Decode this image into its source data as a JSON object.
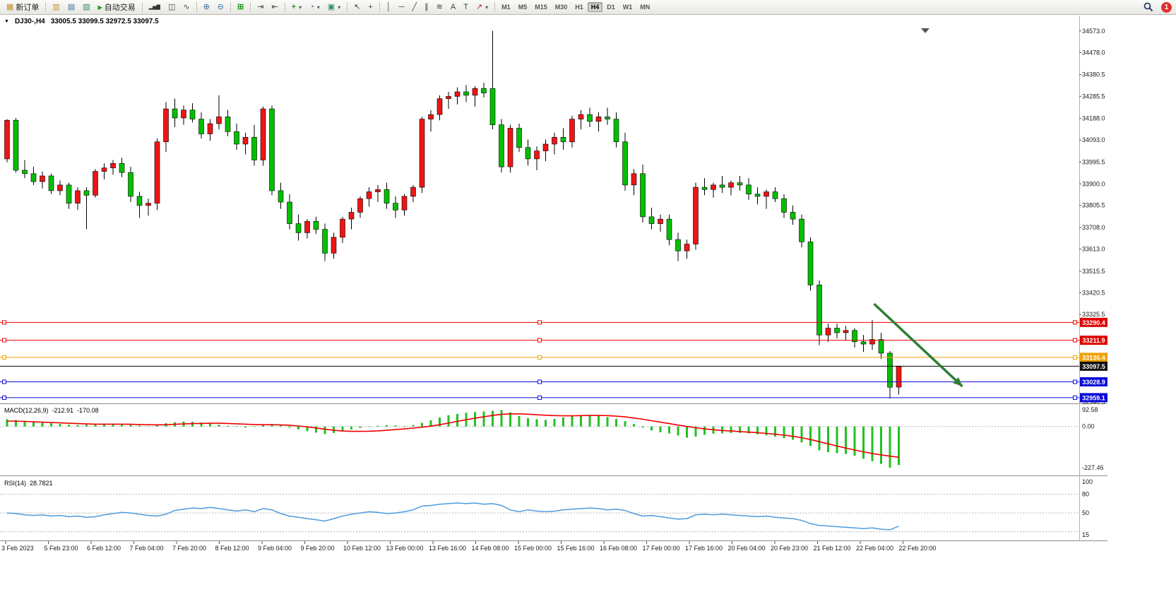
{
  "toolbar": {
    "new_order_label": "新订单",
    "autotrading_label": "自动交易",
    "timeframes": [
      "M1",
      "M5",
      "M15",
      "M30",
      "H1",
      "H4",
      "D1",
      "W1",
      "MN"
    ],
    "active_timeframe": "H4",
    "notification_count": "1"
  },
  "icons": {
    "chart_menu": "▼",
    "new_chart": "▦",
    "market_watch": "▥",
    "data_window": "▤",
    "navigator": "▧",
    "play": "▶",
    "bar_chart": "▂▅▇",
    "candlestick": "◫",
    "line_chart": "∿",
    "zoom_in": "⊕",
    "zoom_out": "⊖",
    "tile_windows": "⊞",
    "scroll_to_end": "⇥",
    "chart_shift": "⇤",
    "indicators": "+",
    "periods": "◔",
    "templates": "▣",
    "dropdown": "▾",
    "cursor": "↖",
    "crosshair": "+",
    "vertical_line": "│",
    "horizontal_line": "─",
    "trend_line": "╱",
    "channel": "∥",
    "fibonacci": "≋",
    "text_tool": "A",
    "label_tool": "T",
    "arrows_tool": "↗"
  },
  "chart_header": {
    "symbol_period": "DJ30-,H4",
    "ohlc": "33005.5 33099.5 32972.5 33097.5"
  },
  "chart_data": {
    "type": "candlestick",
    "symbol": "DJ30-",
    "timeframe": "H4",
    "colors": {
      "bull": "#f01414",
      "bear": "#00c000",
      "wick": "#000000",
      "border": "#000000"
    },
    "price_axis": [
      "34573.0",
      "34478.0",
      "34380.5",
      "34285.5",
      "34188.0",
      "34093.0",
      "33995.5",
      "33900.0",
      "33805.5",
      "33708.0",
      "33613.0",
      "33515.5",
      "33420.5",
      "33325.5",
      "32940.5"
    ],
    "price_lines": [
      {
        "label": "33290.4",
        "price": 33290.4,
        "color": "#f00000",
        "tag_bg": "#e00000",
        "handles": true
      },
      {
        "label": "33211.9",
        "price": 33211.9,
        "color": "#f00000",
        "tag_bg": "#e00000",
        "handles": true
      },
      {
        "label": "33136.4",
        "price": 33136.4,
        "color": "#f0a000",
        "tag_bg": "#f0a000",
        "handles": true
      },
      {
        "label": "33097.5",
        "price": 33097.5,
        "color": "#000000",
        "tag_bg": "#111111",
        "handles": false
      },
      {
        "label": "33028.9",
        "price": 33028.9,
        "color": "#0a0ad8",
        "tag_bg": "#0a0ad8",
        "handles": true
      },
      {
        "label": "32959.1",
        "price": 32959.1,
        "color": "#0a0ad8",
        "tag_bg": "#0a0ad8",
        "handles": true
      }
    ],
    "candles": [
      [
        34010,
        34185,
        33995,
        34180
      ],
      [
        34180,
        34190,
        33950,
        33960
      ],
      [
        33960,
        34005,
        33925,
        33945
      ],
      [
        33945,
        33975,
        33895,
        33910
      ],
      [
        33910,
        33955,
        33880,
        33935
      ],
      [
        33935,
        33945,
        33855,
        33870
      ],
      [
        33870,
        33915,
        33850,
        33895
      ],
      [
        33895,
        33905,
        33790,
        33815
      ],
      [
        33815,
        33885,
        33785,
        33870
      ],
      [
        33870,
        33885,
        33700,
        33850
      ],
      [
        33850,
        33965,
        33840,
        33955
      ],
      [
        33955,
        33990,
        33920,
        33970
      ],
      [
        33970,
        34005,
        33940,
        33990
      ],
      [
        33990,
        34015,
        33930,
        33950
      ],
      [
        33950,
        33975,
        33820,
        33845
      ],
      [
        33845,
        33865,
        33750,
        33805
      ],
      [
        33805,
        33835,
        33760,
        33815
      ],
      [
        33815,
        34100,
        33785,
        34085
      ],
      [
        34085,
        34260,
        34040,
        34230
      ],
      [
        34230,
        34275,
        34150,
        34190
      ],
      [
        34190,
        34245,
        34160,
        34225
      ],
      [
        34225,
        34255,
        34170,
        34185
      ],
      [
        34185,
        34215,
        34100,
        34120
      ],
      [
        34120,
        34185,
        34090,
        34165
      ],
      [
        34165,
        34290,
        34140,
        34195
      ],
      [
        34195,
        34225,
        34110,
        34130
      ],
      [
        34130,
        34165,
        34050,
        34075
      ],
      [
        34075,
        34125,
        34030,
        34105
      ],
      [
        34105,
        34160,
        33980,
        34005
      ],
      [
        34005,
        34240,
        33980,
        34230
      ],
      [
        34230,
        34245,
        33850,
        33870
      ],
      [
        33870,
        33905,
        33790,
        33820
      ],
      [
        33820,
        33855,
        33700,
        33725
      ],
      [
        33725,
        33765,
        33650,
        33685
      ],
      [
        33685,
        33745,
        33660,
        33735
      ],
      [
        33735,
        33755,
        33680,
        33700
      ],
      [
        33700,
        33725,
        33560,
        33595
      ],
      [
        33595,
        33685,
        33570,
        33665
      ],
      [
        33665,
        33755,
        33640,
        33745
      ],
      [
        33745,
        33795,
        33700,
        33775
      ],
      [
        33775,
        33845,
        33750,
        33835
      ],
      [
        33835,
        33885,
        33800,
        33865
      ],
      [
        33865,
        33895,
        33820,
        33875
      ],
      [
        33875,
        33905,
        33790,
        33815
      ],
      [
        33815,
        33845,
        33750,
        33785
      ],
      [
        33785,
        33855,
        33760,
        33845
      ],
      [
        33845,
        33895,
        33820,
        33885
      ],
      [
        33885,
        34195,
        33860,
        34185
      ],
      [
        34185,
        34225,
        34130,
        34205
      ],
      [
        34205,
        34290,
        34180,
        34275
      ],
      [
        34275,
        34305,
        34230,
        34285
      ],
      [
        34285,
        34325,
        34250,
        34305
      ],
      [
        34305,
        34335,
        34260,
        34290
      ],
      [
        34290,
        34330,
        34240,
        34320
      ],
      [
        34320,
        34345,
        34280,
        34300
      ],
      [
        34320,
        34573,
        34140,
        34160
      ],
      [
        34160,
        34185,
        33950,
        33975
      ],
      [
        33975,
        34160,
        33950,
        34145
      ],
      [
        34145,
        34165,
        34040,
        34060
      ],
      [
        34060,
        34095,
        33980,
        34010
      ],
      [
        34010,
        34065,
        33960,
        34045
      ],
      [
        34045,
        34095,
        34000,
        34075
      ],
      [
        34075,
        34125,
        34030,
        34105
      ],
      [
        34105,
        34145,
        34050,
        34085
      ],
      [
        34085,
        34200,
        34060,
        34185
      ],
      [
        34185,
        34225,
        34140,
        34205
      ],
      [
        34205,
        34235,
        34150,
        34175
      ],
      [
        34175,
        34215,
        34130,
        34195
      ],
      [
        34195,
        34235,
        34160,
        34185
      ],
      [
        34185,
        34215,
        34060,
        34085
      ],
      [
        34085,
        34125,
        33870,
        33895
      ],
      [
        33895,
        33965,
        33850,
        33945
      ],
      [
        33945,
        33985,
        33730,
        33755
      ],
      [
        33755,
        33795,
        33700,
        33725
      ],
      [
        33725,
        33765,
        33690,
        33745
      ],
      [
        33745,
        33765,
        33630,
        33655
      ],
      [
        33655,
        33685,
        33560,
        33605
      ],
      [
        33605,
        33655,
        33570,
        33635
      ],
      [
        33635,
        33905,
        33610,
        33885
      ],
      [
        33885,
        33925,
        33850,
        33875
      ],
      [
        33875,
        33905,
        33840,
        33895
      ],
      [
        33895,
        33935,
        33860,
        33885
      ],
      [
        33885,
        33915,
        33850,
        33905
      ],
      [
        33905,
        33935,
        33870,
        33895
      ],
      [
        33895,
        33925,
        33830,
        33855
      ],
      [
        33855,
        33885,
        33810,
        33845
      ],
      [
        33845,
        33875,
        33790,
        33865
      ],
      [
        33865,
        33885,
        33820,
        33835
      ],
      [
        33835,
        33855,
        33750,
        33775
      ],
      [
        33775,
        33805,
        33720,
        33745
      ],
      [
        33745,
        33765,
        33620,
        33645
      ],
      [
        33645,
        33665,
        33430,
        33455
      ],
      [
        33455,
        33475,
        33190,
        33235
      ],
      [
        33235,
        33285,
        33205,
        33265
      ],
      [
        33265,
        33285,
        33220,
        33245
      ],
      [
        33245,
        33275,
        33210,
        33255
      ],
      [
        33255,
        33265,
        33180,
        33205
      ],
      [
        33205,
        33235,
        33160,
        33195
      ],
      [
        33195,
        33300,
        33170,
        33215
      ],
      [
        33215,
        33245,
        33130,
        33155
      ],
      [
        33155,
        33165,
        32955,
        33005
      ],
      [
        33005.5,
        33099.5,
        32972.5,
        33097.5
      ]
    ],
    "arrow": {
      "color": "#2e7d32",
      "from_bar": 98.2,
      "from_price": 33372,
      "to_bar": 108.2,
      "to_price": 33009
    },
    "macd": {
      "name": "MACD(12,26,9)",
      "main_value": "-212.91",
      "signal_value": "-170.08",
      "scale_labels": [
        "92.58",
        "0.00",
        "-227.46"
      ],
      "hist_color": "#22c122",
      "signal_color": "#f00000",
      "histogram": [
        40,
        36,
        32,
        26,
        22,
        18,
        14,
        10,
        8,
        10,
        13,
        16,
        15,
        12,
        9,
        5,
        2,
        8,
        18,
        24,
        28,
        26,
        22,
        16,
        10,
        4,
        -2,
        -6,
        -3,
        8,
        14,
        6,
        -6,
        -16,
        -26,
        -34,
        -42,
        -36,
        -26,
        -16,
        -8,
        -2,
        4,
        8,
        6,
        3,
        8,
        20,
        34,
        50,
        62,
        70,
        76,
        80,
        83,
        87,
        91,
        78,
        58,
        46,
        40,
        36,
        42,
        50,
        58,
        62,
        64,
        60,
        52,
        42,
        30,
        14,
        -6,
        -22,
        -32,
        -38,
        -50,
        -62,
        -56,
        -46,
        -40,
        -38,
        -36,
        -35,
        -38,
        -43,
        -49,
        -56,
        -64,
        -73,
        -88,
        -108,
        -132,
        -142,
        -147,
        -152,
        -162,
        -178,
        -192,
        -207,
        -227,
        -213
      ],
      "signal": [
        30,
        29,
        28,
        26,
        24,
        22,
        20,
        18,
        16,
        14,
        13,
        13,
        13,
        13,
        12,
        11,
        10,
        9,
        10,
        12,
        14,
        16,
        17,
        18,
        18,
        17,
        15,
        13,
        11,
        10,
        10,
        9,
        7,
        3,
        -2,
        -8,
        -15,
        -21,
        -25,
        -27,
        -27,
        -26,
        -24,
        -21,
        -17,
        -13,
        -9,
        -4,
        2,
        10,
        19,
        28,
        37,
        46,
        54,
        61,
        67,
        70,
        70,
        68,
        65,
        62,
        60,
        59,
        59,
        60,
        61,
        61,
        60,
        57,
        53,
        47,
        40,
        32,
        24,
        16,
        8,
        0,
        -7,
        -13,
        -18,
        -22,
        -25,
        -28,
        -31,
        -34,
        -38,
        -43,
        -48,
        -54,
        -62,
        -72,
        -84,
        -96,
        -108,
        -119,
        -130,
        -140,
        -149,
        -157,
        -164,
        -170
      ]
    },
    "rsi": {
      "name": "RSI(14)",
      "value": "28.7821",
      "scale_labels": [
        "100",
        "80",
        "50",
        "15"
      ],
      "levels": [
        80,
        50,
        20
      ],
      "line_color": "#4e9be0",
      "line": [
        50,
        49,
        47,
        46,
        47,
        45,
        46,
        44,
        45,
        43,
        44,
        47,
        49,
        51,
        50,
        48,
        46,
        45,
        48,
        54,
        56,
        58,
        57,
        59,
        57,
        55,
        53,
        55,
        52,
        57,
        55,
        49,
        45,
        43,
        41,
        39,
        37,
        41,
        45,
        48,
        50,
        52,
        51,
        49,
        50,
        52,
        55,
        61,
        62,
        64,
        65,
        66,
        65,
        66,
        64,
        65,
        62,
        55,
        52,
        55,
        53,
        52,
        53,
        55,
        56,
        57,
        58,
        57,
        55,
        56,
        54,
        49,
        45,
        46,
        44,
        42,
        40,
        41,
        47,
        48,
        47,
        48,
        47,
        46,
        45,
        44,
        45,
        43,
        42,
        41,
        38,
        33,
        30,
        29,
        28,
        27,
        26,
        25,
        26,
        24,
        23,
        28.78
      ]
    },
    "time_labels": [
      "3 Feb 2023",
      "5 Feb 23:00",
      "6 Feb 12:00",
      "7 Feb 04:00",
      "7 Feb 20:00",
      "8 Feb 12:00",
      "9 Feb 04:00",
      "9 Feb 20:00",
      "10 Feb 12:00",
      "13 Feb 00:00",
      "13 Feb 16:00",
      "14 Feb 08:00",
      "15 Feb 00:00",
      "15 Feb 16:00",
      "16 Feb 08:00",
      "17 Feb 00:00",
      "17 Feb 16:00",
      "20 Feb 04:00",
      "20 Feb 23:00",
      "21 Feb 12:00",
      "22 Feb 04:00",
      "22 Feb 20:00"
    ]
  }
}
